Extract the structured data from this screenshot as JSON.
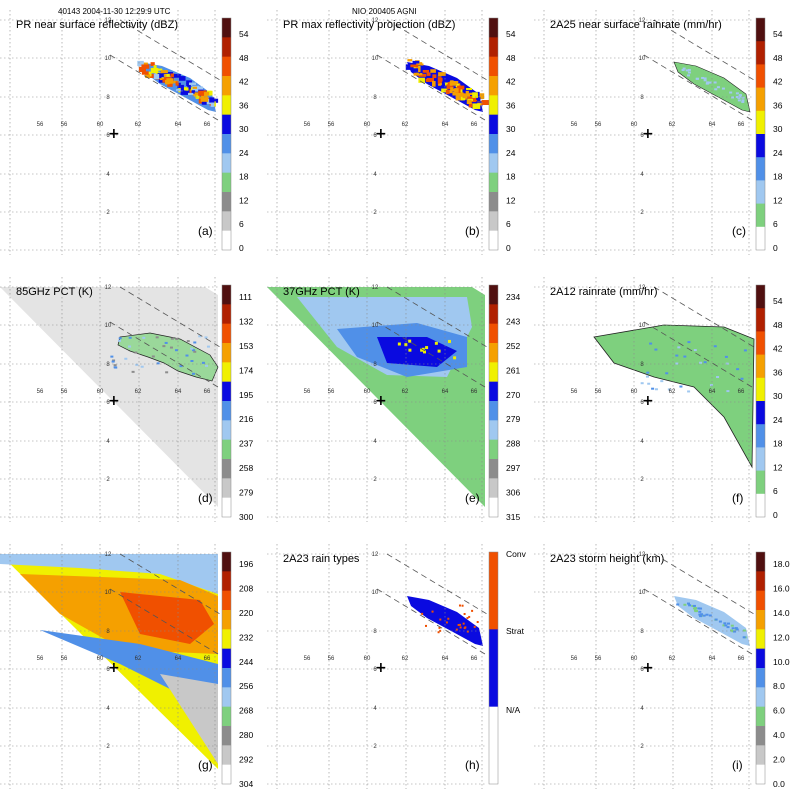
{
  "header": {
    "left": "40143 2004-11-30 12:29:9 UTC",
    "center": "NIO 200405 AGNI"
  },
  "grid": {
    "lon_labels": [
      "56",
      "56",
      "60",
      "62",
      "64",
      "66"
    ],
    "lat_labels": [
      "12",
      "10",
      "8",
      "6",
      "4",
      "2"
    ]
  },
  "colors": {
    "grid": "#8a8a8a",
    "land_green": "#7ed07e",
    "swath_edge": "#555555"
  },
  "chart_data": [
    {
      "id": "a",
      "type": "heatmap",
      "title": "PR near surface reflectivity (dBZ)",
      "label": "(a)",
      "colorbar": {
        "ticks": [
          "0",
          "6",
          "12",
          "18",
          "24",
          "30",
          "36",
          "42",
          "48",
          "54"
        ],
        "colors": [
          "#ffffff",
          "#c8c8c8",
          "#8c8c8c",
          "#7ed07e",
          "#a0c8f0",
          "#5090e8",
          "#0a0ae0",
          "#f0f000",
          "#f5a000",
          "#f05000",
          "#b02000",
          "#501010"
        ]
      }
    },
    {
      "id": "b",
      "type": "heatmap",
      "title": "PR max reflectivity projection (dBZ)",
      "label": "(b)",
      "colorbar": {
        "ticks": [
          "0",
          "6",
          "12",
          "18",
          "24",
          "30",
          "36",
          "42",
          "48",
          "54"
        ],
        "colors": [
          "#ffffff",
          "#c8c8c8",
          "#8c8c8c",
          "#7ed07e",
          "#a0c8f0",
          "#5090e8",
          "#0a0ae0",
          "#f0f000",
          "#f5a000",
          "#f05000",
          "#b02000",
          "#501010"
        ]
      }
    },
    {
      "id": "c",
      "type": "heatmap",
      "title": "2A25 near surface rainrate (mm/hr)",
      "label": "(c)",
      "colorbar": {
        "ticks": [
          "0",
          "6",
          "12",
          "18",
          "24",
          "30",
          "36",
          "42",
          "48",
          "54"
        ],
        "colors": [
          "#ffffff",
          "#7ed07e",
          "#a0c8f0",
          "#5090e8",
          "#0a0ae0",
          "#f0f000",
          "#f5a000",
          "#f05000",
          "#b02000",
          "#501010"
        ]
      }
    },
    {
      "id": "d",
      "type": "heatmap",
      "title": "85GHz PCT (K)",
      "label": "(d)",
      "colorbar": {
        "ticks": [
          "111",
          "132",
          "153",
          "174",
          "195",
          "216",
          "237",
          "258",
          "279",
          "300"
        ],
        "colors": [
          "#501010",
          "#b02000",
          "#f05000",
          "#f5a000",
          "#f0f000",
          "#0a0ae0",
          "#5090e8",
          "#a0c8f0",
          "#7ed07e",
          "#8c8c8c",
          "#c8c8c8",
          "#ffffff"
        ]
      }
    },
    {
      "id": "e",
      "type": "heatmap",
      "title": "37GHz PCT (K)",
      "label": "(e)",
      "colorbar": {
        "ticks": [
          "234",
          "243",
          "252",
          "261",
          "270",
          "279",
          "288",
          "297",
          "306",
          "315"
        ],
        "colors": [
          "#501010",
          "#b02000",
          "#f05000",
          "#f5a000",
          "#f0f000",
          "#0a0ae0",
          "#5090e8",
          "#a0c8f0",
          "#7ed07e",
          "#8c8c8c",
          "#c8c8c8",
          "#ffffff"
        ]
      }
    },
    {
      "id": "f",
      "type": "heatmap",
      "title": "2A12 rainrate (mm/hr)",
      "label": "(f)",
      "colorbar": {
        "ticks": [
          "0",
          "6",
          "12",
          "18",
          "24",
          "30",
          "36",
          "42",
          "48",
          "54"
        ],
        "colors": [
          "#ffffff",
          "#7ed07e",
          "#a0c8f0",
          "#5090e8",
          "#0a0ae0",
          "#f0f000",
          "#f5a000",
          "#f05000",
          "#b02000",
          "#501010"
        ]
      }
    },
    {
      "id": "g",
      "type": "heatmap",
      "title": "",
      "label": "(g)",
      "colorbar": {
        "ticks": [
          "196",
          "208",
          "220",
          "232",
          "244",
          "256",
          "268",
          "280",
          "292",
          "304"
        ],
        "colors": [
          "#501010",
          "#b02000",
          "#f05000",
          "#f5a000",
          "#f0f000",
          "#0a0ae0",
          "#5090e8",
          "#a0c8f0",
          "#7ed07e",
          "#8c8c8c",
          "#c8c8c8",
          "#ffffff"
        ]
      }
    },
    {
      "id": "h",
      "type": "heatmap",
      "title": "2A23 rain types",
      "label": "(h)",
      "colorbar": {
        "ticks": [
          "Conv",
          "Strat",
          "N/A"
        ],
        "categorical": true,
        "colors": [
          "#f05000",
          "#0a0ae0",
          "#ffffff"
        ]
      }
    },
    {
      "id": "i",
      "type": "heatmap",
      "title": "2A23 storm height (km)",
      "label": "(i)",
      "colorbar": {
        "ticks": [
          "18.0",
          "16.0",
          "14.0",
          "12.0",
          "10.0",
          "8.0",
          "6.0",
          "4.0",
          "2.0",
          "0.0"
        ],
        "colors": [
          "#501010",
          "#b02000",
          "#f05000",
          "#f5a000",
          "#f0f000",
          "#0a0ae0",
          "#5090e8",
          "#a0c8f0",
          "#7ed07e",
          "#8c8c8c",
          "#c8c8c8",
          "#ffffff"
        ]
      }
    }
  ]
}
